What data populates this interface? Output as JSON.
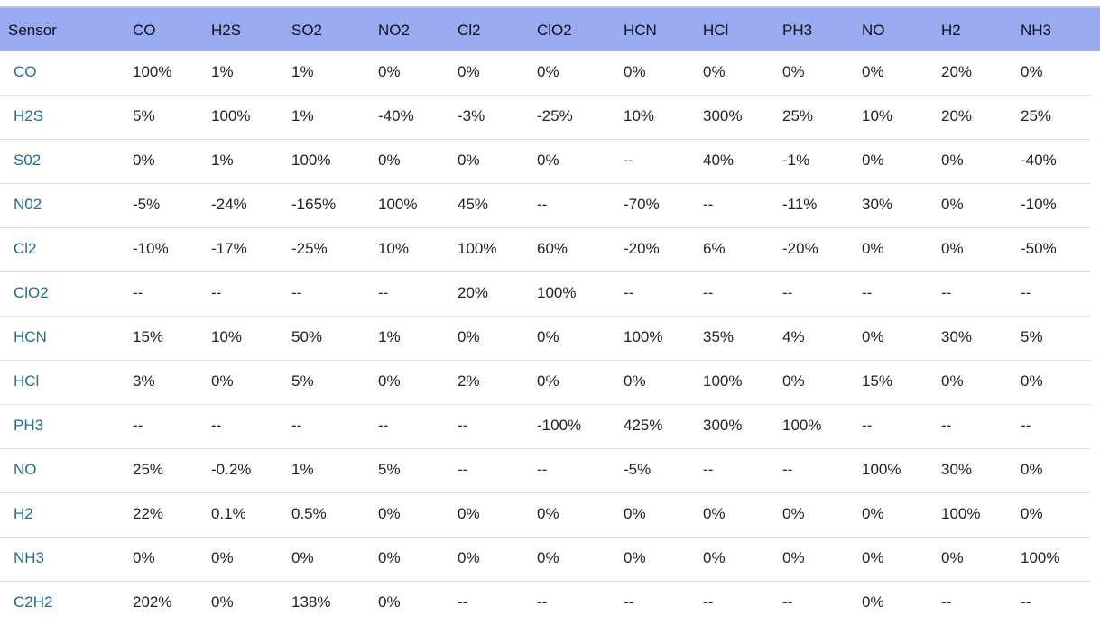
{
  "table": {
    "header_label": "Sensor",
    "columns": [
      "CO",
      "H2S",
      "SO2",
      "NO2",
      "Cl2",
      "ClO2",
      "HCN",
      "HCl",
      "PH3",
      "NO",
      "H2",
      "NH3"
    ],
    "rows": [
      {
        "sensor": "CO",
        "values": [
          "100%",
          "1%",
          "1%",
          "0%",
          "0%",
          "0%",
          "0%",
          "0%",
          "0%",
          "0%",
          "20%",
          "0%"
        ]
      },
      {
        "sensor": "H2S",
        "values": [
          "5%",
          "100%",
          "1%",
          "-40%",
          "-3%",
          "-25%",
          "10%",
          "300%",
          "25%",
          "10%",
          "20%",
          "25%"
        ]
      },
      {
        "sensor": "S02",
        "values": [
          "0%",
          "1%",
          "100%",
          "0%",
          "0%",
          "0%",
          "--",
          "40%",
          "-1%",
          "0%",
          "0%",
          "-40%"
        ]
      },
      {
        "sensor": "N02",
        "values": [
          "-5%",
          "-24%",
          "-165%",
          "100%",
          "45%",
          "--",
          "-70%",
          "--",
          "-11%",
          "30%",
          "0%",
          "-10%"
        ]
      },
      {
        "sensor": "Cl2",
        "values": [
          "-10%",
          "-17%",
          "-25%",
          "10%",
          "100%",
          "60%",
          "-20%",
          "6%",
          "-20%",
          "0%",
          "0%",
          "-50%"
        ]
      },
      {
        "sensor": "ClO2",
        "values": [
          "--",
          "--",
          "--",
          "--",
          "20%",
          "100%",
          "--",
          "--",
          "--",
          "--",
          "--",
          "--"
        ]
      },
      {
        "sensor": "HCN",
        "values": [
          "15%",
          "10%",
          "50%",
          "1%",
          "0%",
          "0%",
          "100%",
          "35%",
          "4%",
          "0%",
          "30%",
          "5%"
        ]
      },
      {
        "sensor": "HCl",
        "values": [
          "3%",
          "0%",
          "5%",
          "0%",
          "2%",
          "0%",
          "0%",
          "100%",
          "0%",
          "15%",
          "0%",
          "0%"
        ]
      },
      {
        "sensor": "PH3",
        "values": [
          "--",
          "--",
          "--",
          "--",
          "--",
          "-100%",
          "425%",
          "300%",
          "100%",
          "--",
          "--",
          "--"
        ]
      },
      {
        "sensor": "NO",
        "values": [
          "25%",
          "-0.2%",
          "1%",
          "5%",
          "--",
          "--",
          "-5%",
          "--",
          "--",
          "100%",
          "30%",
          "0%"
        ]
      },
      {
        "sensor": "H2",
        "values": [
          "22%",
          "0.1%",
          "0.5%",
          "0%",
          "0%",
          "0%",
          "0%",
          "0%",
          "0%",
          "0%",
          "100%",
          "0%"
        ]
      },
      {
        "sensor": "NH3",
        "values": [
          "0%",
          "0%",
          "0%",
          "0%",
          "0%",
          "0%",
          "0%",
          "0%",
          "0%",
          "0%",
          "0%",
          "100%"
        ]
      },
      {
        "sensor": "C2H2",
        "values": [
          "202%",
          "0%",
          "138%",
          "0%",
          "--",
          "--",
          "--",
          "--",
          "--",
          "0%",
          "--",
          "--"
        ]
      }
    ]
  },
  "colors": {
    "header_bg": "#9aaaf0",
    "row_label": "#1b6f95",
    "cell_text": "#222222",
    "divider": "#e2e2e2"
  }
}
